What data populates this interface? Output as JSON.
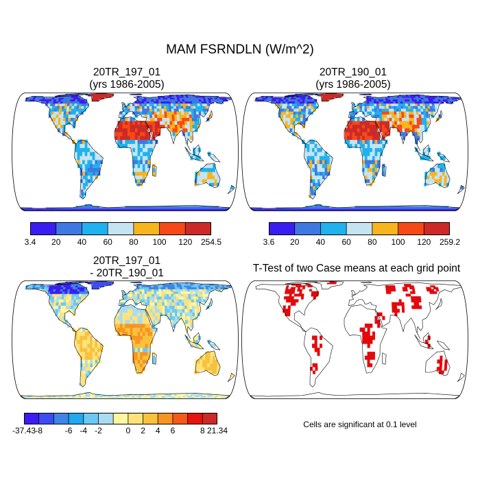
{
  "title": "MAM FSRNDLN (W/m^2)",
  "panels": [
    {
      "id": "case1",
      "title_lines": [
        "20TR_197_01",
        "(yrs 1986-2005)"
      ],
      "colorbar": {
        "colors": [
          "#3a1df2",
          "#3f78e0",
          "#1fb2ee",
          "#c5e4f1",
          "#f7b41d",
          "#f74817",
          "#cc2a26"
        ],
        "labels": [
          "3.4",
          "20",
          "40",
          "60",
          "80",
          "100",
          "120",
          "254.5"
        ]
      }
    },
    {
      "id": "case2",
      "title_lines": [
        "20TR_190_01",
        "(yrs 1986-2005)"
      ],
      "colorbar": {
        "colors": [
          "#3a1df2",
          "#3f78e0",
          "#1fb2ee",
          "#c5e4f1",
          "#f7b41d",
          "#f74817",
          "#cc2a26"
        ],
        "labels": [
          "3.6",
          "20",
          "40",
          "60",
          "80",
          "100",
          "120",
          "259.2"
        ]
      }
    },
    {
      "id": "diff",
      "title_lines": [
        "20TR_197_01",
        "- 20TR_190_01"
      ],
      "colorbar": {
        "colors": [
          "#3a1df2",
          "#3d4cf0",
          "#3f85e3",
          "#21a8f0",
          "#6cc8f2",
          "#a9dcf0",
          "#fff6a2",
          "#fde37a",
          "#f7c23e",
          "#f79423",
          "#f4591a",
          "#e5140c",
          "#cc2a26"
        ],
        "labels": [
          "-37.43",
          "-8",
          "-6",
          "-4",
          "-2",
          "0",
          "2",
          "4",
          "6",
          "8",
          "21.34"
        ]
      }
    },
    {
      "id": "ttest",
      "title_lines": [
        "T-Test of two Case means at each grid point"
      ],
      "note": "Cells are significant at 0.1 level"
    }
  ]
}
